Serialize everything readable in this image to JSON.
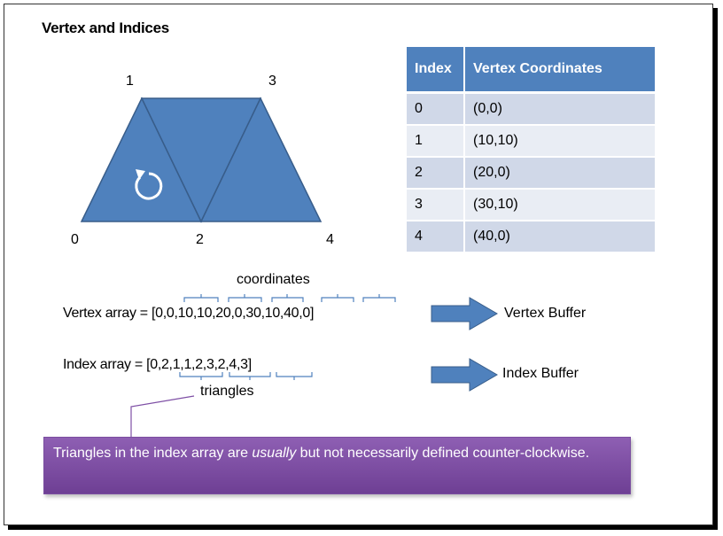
{
  "title": "Vertex and Indices",
  "vertices": [
    {
      "label": "0",
      "coord": "(0,0)"
    },
    {
      "label": "1",
      "coord": "(10,10)"
    },
    {
      "label": "2",
      "coord": "(20,0)"
    },
    {
      "label": "3",
      "coord": "(30,10)"
    },
    {
      "label": "4",
      "coord": "(40,0)"
    }
  ],
  "table": {
    "headers": [
      "Index",
      "Vertex Coordinates"
    ],
    "rows": [
      [
        "0",
        "(0,0)"
      ],
      [
        "1",
        "(10,10)"
      ],
      [
        "2",
        "(20,0)"
      ],
      [
        "3",
        "(30,10)"
      ],
      [
        "4",
        "(40,0)"
      ]
    ]
  },
  "coordinates_label": "coordinates",
  "vertex_array_text": "Vertex array = [0,0,10,10,20,0,30,10,40,0]",
  "index_array_text": "Index array = [0,2,1,1,2,3,2,4,3]",
  "triangles_label": "triangles",
  "vertex_buffer_label": "Vertex Buffer",
  "index_buffer_label": "Index Buffer",
  "callout": {
    "before": "Triangles in the index array are ",
    "emphasis": "usually",
    "after": " but not necessarily defined counter-clockwise."
  },
  "colors": {
    "shape_fill": "#4f81bd",
    "shape_stroke": "#385d8a",
    "callout_fill": "#7e4fa5",
    "brace": "#4f81bd"
  }
}
